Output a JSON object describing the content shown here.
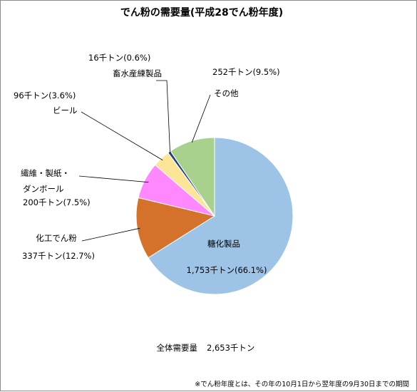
{
  "chart_data": {
    "type": "pie",
    "title": "でん粉の需要量(平成28でん粉年度)",
    "unit": "千トン",
    "slices": [
      {
        "label": "糖化製品",
        "value": 1753,
        "percent": 66.1,
        "value_text": "1,753千トン(66.1%)",
        "color": "#9dc3e6"
      },
      {
        "label": "化工でん粉",
        "value": 337,
        "percent": 12.7,
        "value_text": "337千トン(12.7%)",
        "color": "#d4712a"
      },
      {
        "label": "繊維・製紙・ダンボール",
        "label_lines": [
          "繊維・製紙・",
          "ダンボール"
        ],
        "value": 200,
        "percent": 7.5,
        "value_text": "200千トン(7.5%)",
        "color": "#ff88ff"
      },
      {
        "label": "ビール",
        "value": 96,
        "percent": 3.6,
        "value_text": "96千トン(3.6%)",
        "color": "#fde598"
      },
      {
        "label": "畜水産練製品",
        "value": 16,
        "percent": 0.6,
        "value_text": "16千トン(0.6%)",
        "color": "#1f3f7f"
      },
      {
        "label": "その他",
        "value": 252,
        "percent": 9.5,
        "value_text": "252千トン(9.5%)",
        "color": "#a9d18e"
      }
    ],
    "total_label": "全体需要量",
    "total_value": "2,653千トン",
    "footnote": "※でん粉年度とは、その年の10月1日から翌年度の9月30日までの期間"
  }
}
